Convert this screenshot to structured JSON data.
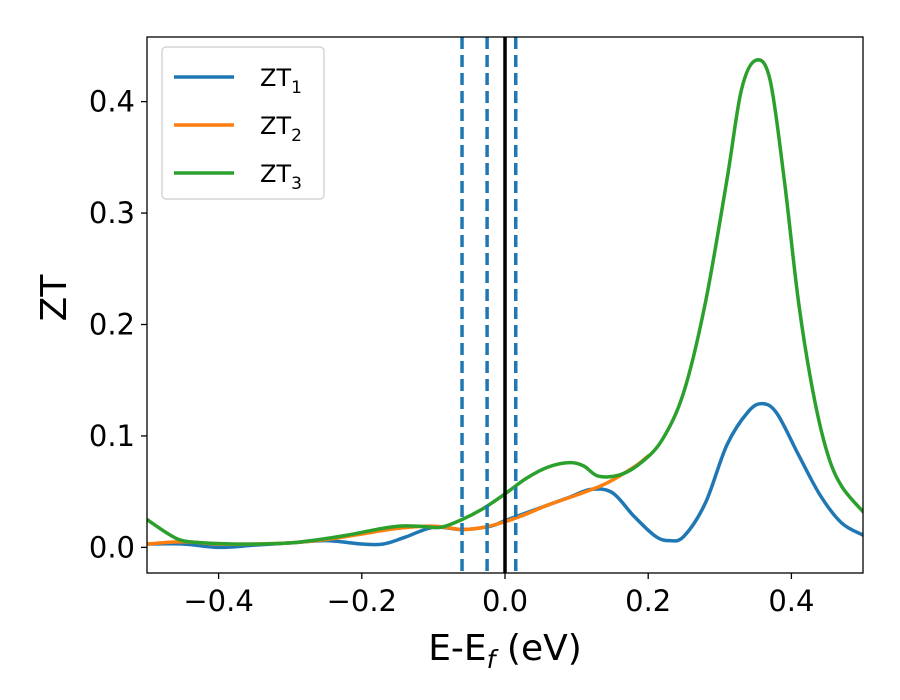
{
  "chart_data": {
    "type": "line",
    "xlabel": "E-E",
    "xlabel_sub": "f",
    "xlabel_unit": " (eV)",
    "ylabel": "ZT",
    "xlim": [
      -0.5,
      0.5
    ],
    "ylim": [
      -0.023,
      0.458
    ],
    "xticks": [
      -0.4,
      -0.2,
      0.0,
      0.2,
      0.4
    ],
    "xtick_labels": [
      "−0.4",
      "−0.2",
      "0.0",
      "0.2",
      "0.4"
    ],
    "yticks": [
      0.0,
      0.1,
      0.2,
      0.3,
      0.4
    ],
    "ytick_labels": [
      "0.0",
      "0.1",
      "0.2",
      "0.3",
      "0.4"
    ],
    "grid": false,
    "legend_position": "top-left",
    "vertical_lines": [
      {
        "x": -0.06,
        "style": "dashed",
        "color": "#1f77b4"
      },
      {
        "x": -0.025,
        "style": "dashed",
        "color": "#1f77b4"
      },
      {
        "x": 0.015,
        "style": "dashed",
        "color": "#1f77b4"
      },
      {
        "x": 0.0,
        "style": "solid",
        "color": "#000000"
      }
    ],
    "series": [
      {
        "name": "ZT",
        "sub": "1",
        "color": "#1f77b4",
        "x": [
          -0.5,
          -0.45,
          -0.4,
          -0.35,
          -0.3,
          -0.25,
          -0.2,
          -0.17,
          -0.14,
          -0.1,
          -0.06,
          -0.02,
          0.0,
          0.03,
          0.06,
          0.09,
          0.12,
          0.15,
          0.18,
          0.21,
          0.23,
          0.25,
          0.28,
          0.31,
          0.34,
          0.36,
          0.38,
          0.41,
          0.44,
          0.47,
          0.5
        ],
        "y": [
          0.003,
          0.003,
          0.0,
          0.002,
          0.004,
          0.006,
          0.003,
          0.003,
          0.009,
          0.018,
          0.016,
          0.019,
          0.024,
          0.031,
          0.038,
          0.045,
          0.052,
          0.049,
          0.028,
          0.01,
          0.006,
          0.01,
          0.04,
          0.092,
          0.122,
          0.129,
          0.12,
          0.083,
          0.047,
          0.022,
          0.011
        ]
      },
      {
        "name": "ZT",
        "sub": "2",
        "color": "#ff7f0e",
        "x": [
          -0.5,
          -0.45,
          -0.4,
          -0.35,
          -0.3,
          -0.25,
          -0.2,
          -0.15,
          -0.1,
          -0.06,
          -0.03,
          0.0,
          0.03,
          0.06,
          0.1,
          0.14,
          0.18,
          0.2
        ],
        "y": [
          0.003,
          0.005,
          0.003,
          0.003,
          0.004,
          0.007,
          0.012,
          0.017,
          0.019,
          0.016,
          0.018,
          0.023,
          0.03,
          0.038,
          0.047,
          0.057,
          0.072,
          0.082
        ]
      },
      {
        "name": "ZT",
        "sub": "3",
        "color": "#2ca02c",
        "x": [
          -0.5,
          -0.47,
          -0.45,
          -0.42,
          -0.38,
          -0.34,
          -0.3,
          -0.26,
          -0.22,
          -0.18,
          -0.15,
          -0.12,
          -0.09,
          -0.06,
          -0.03,
          0.0,
          0.03,
          0.06,
          0.09,
          0.11,
          0.13,
          0.16,
          0.19,
          0.22,
          0.25,
          0.28,
          0.31,
          0.33,
          0.35,
          0.37,
          0.39,
          0.41,
          0.43,
          0.45,
          0.47,
          0.5
        ],
        "y": [
          0.025,
          0.012,
          0.006,
          0.004,
          0.003,
          0.003,
          0.004,
          0.007,
          0.011,
          0.016,
          0.019,
          0.019,
          0.018,
          0.025,
          0.035,
          0.048,
          0.062,
          0.072,
          0.076,
          0.073,
          0.064,
          0.065,
          0.076,
          0.097,
          0.14,
          0.22,
          0.33,
          0.41,
          0.437,
          0.42,
          0.33,
          0.22,
          0.14,
          0.085,
          0.055,
          0.032
        ]
      }
    ]
  }
}
